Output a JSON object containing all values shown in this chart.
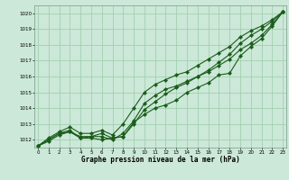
{
  "xlabel": "Graphe pression niveau de la mer (hPa)",
  "ylim": [
    1011.5,
    1020.5
  ],
  "xlim": [
    -0.3,
    23.3
  ],
  "yticks": [
    1012,
    1013,
    1014,
    1015,
    1016,
    1017,
    1018,
    1019,
    1020
  ],
  "xticks": [
    0,
    1,
    2,
    3,
    4,
    5,
    6,
    7,
    8,
    9,
    10,
    11,
    12,
    13,
    14,
    15,
    16,
    17,
    18,
    19,
    20,
    21,
    22,
    23
  ],
  "bg_color": "#cce8d8",
  "grid_color": "#99ccaa",
  "line_color": "#1a5c1a",
  "line1": [
    1011.6,
    1011.9,
    1012.3,
    1012.5,
    1012.1,
    1012.1,
    1012.0,
    1012.1,
    1012.2,
    1013.1,
    1013.6,
    1014.0,
    1014.2,
    1014.5,
    1015.0,
    1015.3,
    1015.6,
    1016.1,
    1016.2,
    1017.3,
    1017.9,
    1018.4,
    1019.2,
    1020.1
  ],
  "line2": [
    1011.6,
    1012.0,
    1012.4,
    1012.5,
    1012.2,
    1012.2,
    1012.2,
    1012.0,
    1012.4,
    1013.2,
    1014.3,
    1014.8,
    1015.2,
    1015.4,
    1015.7,
    1016.0,
    1016.3,
    1016.7,
    1017.1,
    1017.7,
    1018.1,
    1018.6,
    1019.3,
    1020.1
  ],
  "line3_upper": [
    1011.6,
    1012.1,
    1012.5,
    1012.8,
    1012.4,
    1012.4,
    1012.6,
    1012.3,
    1013.0,
    1014.0,
    1015.0,
    1015.5,
    1015.8,
    1016.1,
    1016.3,
    1016.7,
    1017.1,
    1017.5,
    1017.9,
    1018.5,
    1018.9,
    1019.2,
    1019.6,
    1020.1
  ],
  "line4": [
    1011.6,
    1012.0,
    1012.4,
    1012.6,
    1012.1,
    1012.2,
    1012.4,
    1012.1,
    1012.2,
    1013.0,
    1013.9,
    1014.4,
    1014.9,
    1015.3,
    1015.6,
    1016.0,
    1016.4,
    1016.9,
    1017.4,
    1018.1,
    1018.6,
    1019.0,
    1019.5,
    1020.1
  ]
}
